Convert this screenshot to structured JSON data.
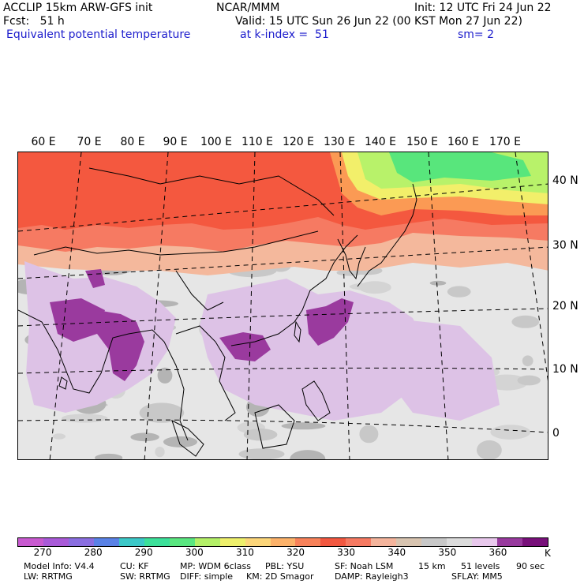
{
  "header": {
    "model": "ACCLIP 15km ARW-GFS init",
    "org": "NCAR/MMM",
    "init": "Init: 12 UTC Fri 24 Jun 22",
    "fcst": "Fcst:   51 h",
    "valid": "Valid: 15 UTC Sun 26 Jun 22 (00 KST Mon 27 Jun 22)",
    "field": "Equivalent potential temperature",
    "level": "at k-index =  51",
    "smooth": "sm= 2"
  },
  "map": {
    "lon_labels": [
      "60 E",
      "70 E",
      "80 E",
      "90 E",
      "100 E",
      "110 E",
      "120 E",
      "130 E",
      "140 E",
      "150 E",
      "160 E",
      "170 E"
    ],
    "lat_labels": [
      "40 N",
      "30 N",
      "20 N",
      "10 N",
      "0"
    ],
    "colors": {
      "gray_light": "#e8e8e8",
      "gray_mid": "#c8c8c8",
      "gray_dark": "#a8a8a8",
      "tan": "#c8b89a",
      "lavender": "#ddc2e6",
      "purple": "#9a3a9e",
      "dark_purple": "#7a1078",
      "peach": "#f4b89c",
      "salmon": "#f67a62",
      "red": "#f45a42",
      "orange": "#fb9a54",
      "yellow": "#f2ef6a",
      "lime": "#b8f26a",
      "green": "#58e67c"
    }
  },
  "colorbar": {
    "colors": [
      "#c85ad0",
      "#a95ad8",
      "#8a6ee0",
      "#5a82e6",
      "#3cc8c8",
      "#3ce09a",
      "#5ae680",
      "#b4f068",
      "#eef06c",
      "#fcd67a",
      "#fcb26a",
      "#f8825a",
      "#f25840",
      "#f67a62",
      "#f4b49c",
      "#d8c4b0",
      "#c8c8c8",
      "#dcdcdc",
      "#e8c8ec",
      "#983a9e",
      "#78107a"
    ],
    "ticks": [
      "270",
      "280",
      "290",
      "300",
      "310",
      "320",
      "330",
      "340",
      "350",
      "360"
    ],
    "unit": "K"
  },
  "footer": {
    "line1": [
      "Model Info: V4.4",
      "CU: KF",
      "MP: WDM 6class",
      "PBL: YSU",
      "SF: Noah LSM",
      "15 km",
      "51 levels",
      "90 sec"
    ],
    "line2": [
      "LW: RRTMG",
      "SW: RRTMG",
      "DIFF: simple",
      "KM: 2D Smagor",
      "DAMP: Rayleigh3",
      "SFLAY: MM5"
    ]
  }
}
